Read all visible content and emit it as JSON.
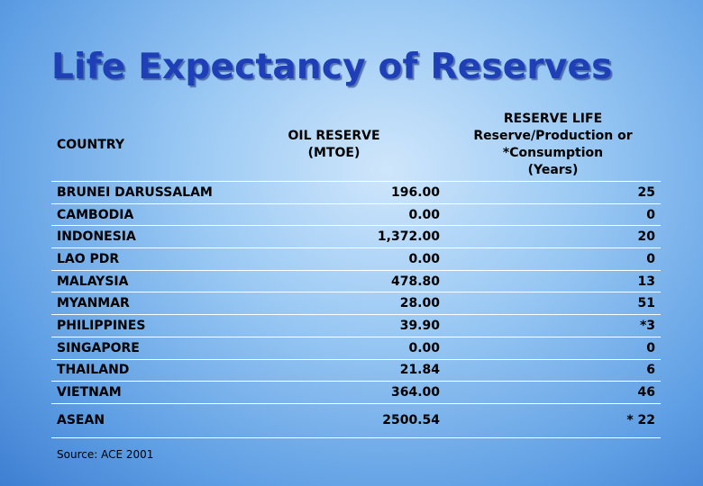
{
  "title": "Life Expectancy of Reserves",
  "table": {
    "headers": {
      "country": "COUNTRY",
      "oil_reserve": [
        "OIL RESERVE",
        "(MTOE)"
      ],
      "reserve_life": [
        "RESERVE LIFE",
        "Reserve/Production or",
        "*Consumption",
        "(Years)"
      ]
    },
    "rows": [
      {
        "country": "BRUNEI DARUSSALAM",
        "oil_reserve": "196.00",
        "reserve_life": "25"
      },
      {
        "country": "CAMBODIA",
        "oil_reserve": "0.00",
        "reserve_life": "0"
      },
      {
        "country": "INDONESIA",
        "oil_reserve": "1,372.00",
        "reserve_life": "20"
      },
      {
        "country": "LAO PDR",
        "oil_reserve": "0.00",
        "reserve_life": "0"
      },
      {
        "country": "MALAYSIA",
        "oil_reserve": "478.80",
        "reserve_life": "13"
      },
      {
        "country": "MYANMAR",
        "oil_reserve": "28.00",
        "reserve_life": "51"
      },
      {
        "country": "PHILIPPINES",
        "oil_reserve": "39.90",
        "reserve_life": "*3"
      },
      {
        "country": "SINGAPORE",
        "oil_reserve": "0.00",
        "reserve_life": "0"
      },
      {
        "country": "THAILAND",
        "oil_reserve": "21.84",
        "reserve_life": "6"
      },
      {
        "country": "VIETNAM",
        "oil_reserve": "364.00",
        "reserve_life": "46"
      }
    ],
    "total": {
      "country": "ASEAN",
      "oil_reserve": "2500.54",
      "reserve_life": "* 22"
    }
  },
  "source": "Source: ACE 2001",
  "colors": {
    "title": "#1f3fb8",
    "table_border": "#ffffff"
  }
}
